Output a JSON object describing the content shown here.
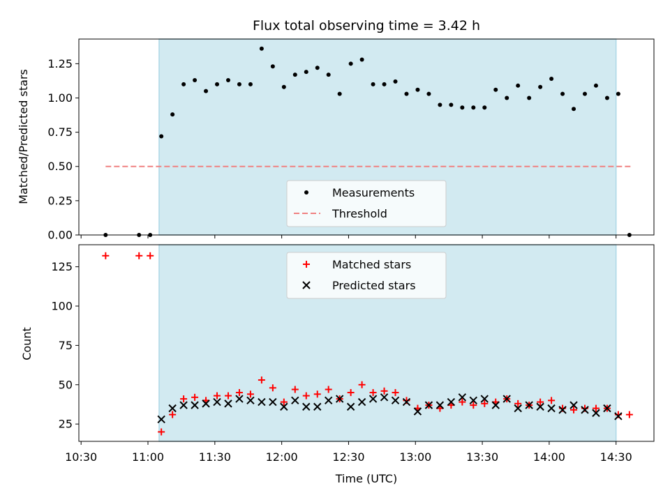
{
  "chart_data": {
    "type": "scatter",
    "title": "Flux total observing time = 3.42 h",
    "xlabel": "Time (UTC)",
    "x_ticks": [
      "10:30",
      "11:00",
      "11:30",
      "12:00",
      "12:30",
      "13:00",
      "13:30",
      "14:00",
      "14:30"
    ],
    "x_tick_minutes": [
      630,
      660,
      690,
      720,
      750,
      780,
      810,
      840,
      870
    ],
    "xlim_minutes": [
      629,
      887
    ],
    "shaded_interval_minutes": [
      665,
      870
    ],
    "shade_color": "#add8e6",
    "times": [
      "10:41",
      "10:56",
      "11:01",
      "11:06",
      "11:11",
      "11:16",
      "11:21",
      "11:26",
      "11:31",
      "11:36",
      "11:41",
      "11:46",
      "11:51",
      "11:56",
      "12:01",
      "12:06",
      "12:11",
      "12:16",
      "12:21",
      "12:26",
      "12:31",
      "12:36",
      "12:41",
      "12:46",
      "12:51",
      "12:56",
      "13:01",
      "13:06",
      "13:11",
      "13:16",
      "13:21",
      "13:26",
      "13:31",
      "13:36",
      "13:41",
      "13:46",
      "13:51",
      "13:56",
      "14:01",
      "14:06",
      "14:11",
      "14:16",
      "14:21",
      "14:26",
      "14:31",
      "14:36"
    ],
    "panels": [
      {
        "ylabel": "Matched/Predicted stars",
        "ylim": [
          0,
          1.43
        ],
        "y_ticks": [
          "0.00",
          "0.25",
          "0.50",
          "0.75",
          "1.00",
          "1.25"
        ],
        "y_tick_values": [
          0,
          0.25,
          0.5,
          0.75,
          1.0,
          1.25
        ],
        "threshold": {
          "value": 0.5,
          "x_start_minutes": 641,
          "x_end_minutes": 877,
          "color": "#f08080"
        },
        "series": [
          {
            "name": "Measurements",
            "marker": "dot",
            "color": "#000000",
            "values": [
              0.0,
              0.0,
              0.0,
              0.72,
              0.88,
              1.1,
              1.13,
              1.05,
              1.1,
              1.13,
              1.1,
              1.1,
              1.36,
              1.23,
              1.08,
              1.17,
              1.19,
              1.22,
              1.17,
              1.03,
              1.25,
              1.28,
              1.1,
              1.1,
              1.12,
              1.03,
              1.06,
              1.03,
              0.95,
              0.95,
              0.93,
              0.93,
              0.93,
              1.06,
              1.0,
              1.09,
              1.0,
              1.08,
              1.14,
              1.03,
              0.92,
              1.03,
              1.09,
              1.0,
              1.03,
              0.0
            ]
          },
          {
            "name": "Threshold",
            "marker": "dashed-line",
            "color": "#f08080"
          }
        ],
        "legend_position": "lower center"
      },
      {
        "ylabel": "Count",
        "ylim": [
          14,
          139
        ],
        "y_ticks": [
          "25",
          "50",
          "75",
          "100",
          "125"
        ],
        "y_tick_values": [
          25,
          50,
          75,
          100,
          125
        ],
        "series": [
          {
            "name": "Matched stars",
            "marker": "plus",
            "color": "#ff0000",
            "values": [
              132,
              132,
              132,
              20,
              31,
              41,
              42,
              40,
              43,
              43,
              45,
              44,
              53,
              48,
              39,
              47,
              43,
              44,
              47,
              41,
              45,
              50,
              45,
              46,
              45,
              40,
              35,
              37,
              35,
              37,
              39,
              37,
              38,
              39,
              41,
              38,
              37,
              39,
              40,
              35,
              34,
              35,
              35,
              35,
              31,
              31
            ]
          },
          {
            "name": "Predicted stars",
            "marker": "x",
            "color": "#000000",
            "values": [
              null,
              null,
              null,
              28,
              35,
              37,
              37,
              38,
              39,
              38,
              41,
              40,
              39,
              39,
              36,
              40,
              36,
              36,
              40,
              41,
              36,
              39,
              41,
              42,
              40,
              39,
              33,
              37,
              37,
              39,
              42,
              40,
              41,
              37,
              41,
              35,
              37,
              36,
              35,
              34,
              37,
              34,
              32,
              35,
              30,
              null
            ]
          }
        ],
        "legend_position": "upper center"
      }
    ]
  }
}
